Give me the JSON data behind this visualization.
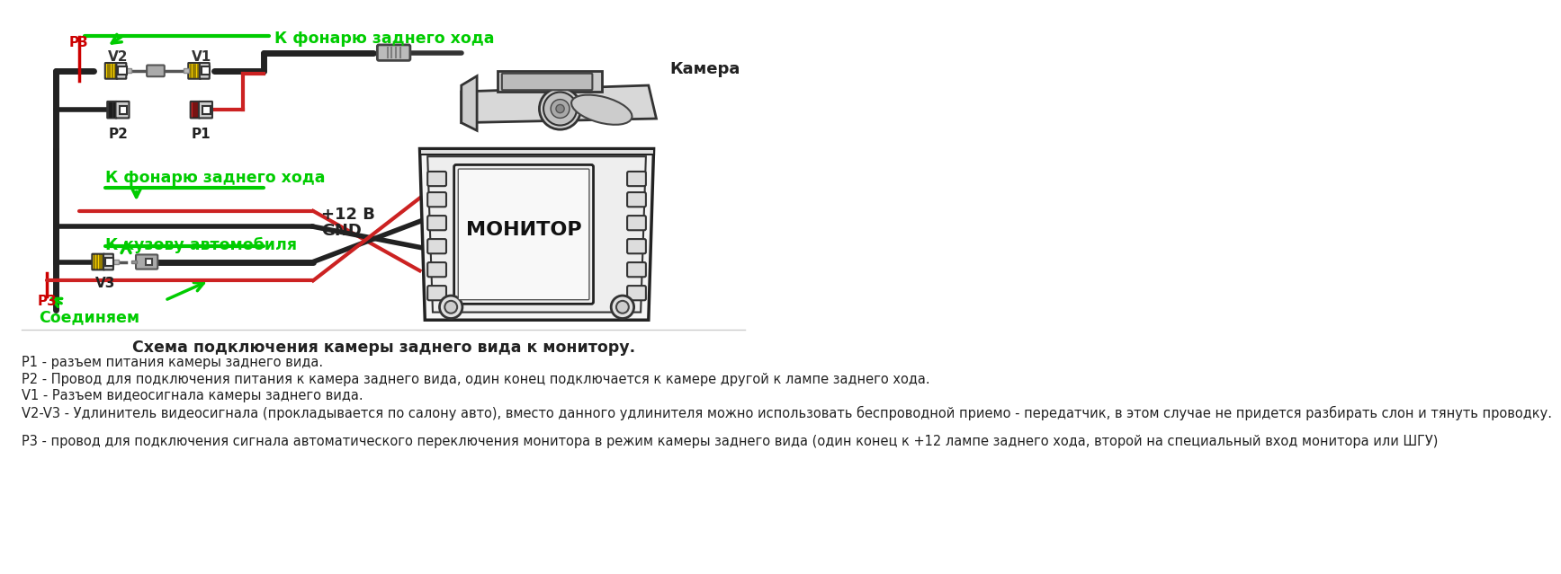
{
  "bg_color": "#ffffff",
  "green_label1": "К фонарю заднего хода",
  "green_label2": "К фонарю заднего хода",
  "green_label3": "К кузову автомобиля",
  "green_label4": "Соединяем",
  "monitor_label": "МОНИТОР",
  "camera_label": "Камера",
  "v12_label": "+12 В",
  "gnd_label": "GND",
  "p1_label": "P1",
  "p2_label": "P2",
  "p3_label_top": "P3",
  "p3_label_bot": "P3",
  "v1_label": "V1",
  "v2_label": "V2",
  "v3_label": "V3",
  "title": "Схема подключения камеры заднего вида к монитору.",
  "desc_lines": [
    "P1 - разъем питания камеры заднего вида.",
    "P2 - Провод для подключения питания к камера заднего вида, один конец подключается к камере другой к лампе заднего хода.",
    "V1 - Разъем видеосигнала камеры заднего вида.",
    "V2-V3 - Удлинитель видеосигнала (прокладывается по салону авто), вместо данного удлинителя можно использовать беспроводной приемо - передатчик, в этом случае не придется разбирать слон и тянуть проводку.",
    "Р3 - провод для подключения сигнала автоматического переключения монитора в режим камеры заднего вида (один конец к +12 лампе заднего хода, второй на специальный вход монитора или ШГУ)"
  ]
}
